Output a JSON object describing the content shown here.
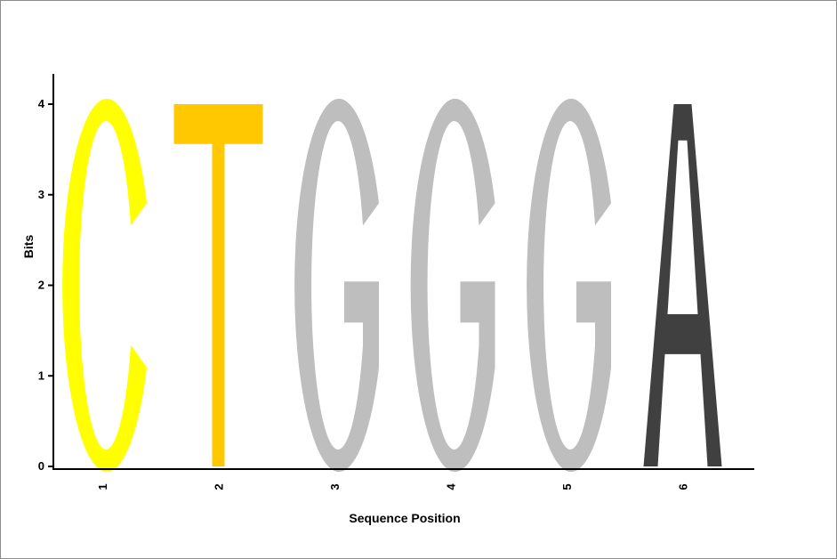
{
  "chart_data": {
    "type": "sequence-logo",
    "title": "",
    "xlabel": "Sequence Position",
    "ylabel": "Bits",
    "ylim": [
      0,
      4
    ],
    "yticks": [
      "0",
      "1",
      "2",
      "3",
      "4"
    ],
    "positions": [
      "1",
      "2",
      "3",
      "4",
      "5",
      "6"
    ],
    "letters": [
      {
        "position": "1",
        "letter": "C",
        "bits": 4.0,
        "color": "#ffff00"
      },
      {
        "position": "2",
        "letter": "T",
        "bits": 4.0,
        "color": "#ffc800"
      },
      {
        "position": "3",
        "letter": "G",
        "bits": 4.0,
        "color": "#bebebe"
      },
      {
        "position": "4",
        "letter": "G",
        "bits": 4.0,
        "color": "#bebebe"
      },
      {
        "position": "5",
        "letter": "G",
        "bits": 4.0,
        "color": "#bebebe"
      },
      {
        "position": "6",
        "letter": "A",
        "bits": 4.0,
        "color": "#404040"
      }
    ],
    "grid": false,
    "legend": "none"
  }
}
